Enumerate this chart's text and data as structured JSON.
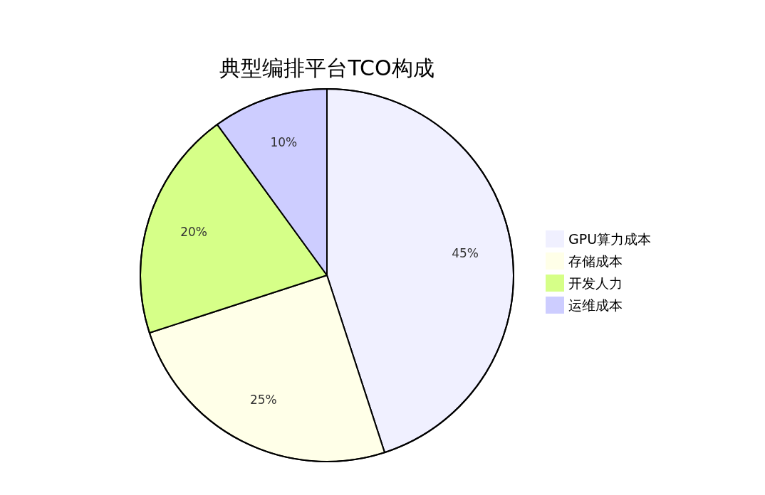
{
  "chart_data": {
    "type": "pie",
    "title": "典型编排平台TCO构成",
    "categories": [
      "GPU算力成本",
      "存储成本",
      "开发人力",
      "运维成本"
    ],
    "values": [
      45,
      25,
      20,
      10
    ],
    "colors": [
      "#f0f0ff",
      "#ffffe8",
      "#d6ff88",
      "#cdcdff"
    ],
    "value_labels": [
      "45%",
      "25%",
      "20%",
      "10%"
    ],
    "legend": "right"
  }
}
